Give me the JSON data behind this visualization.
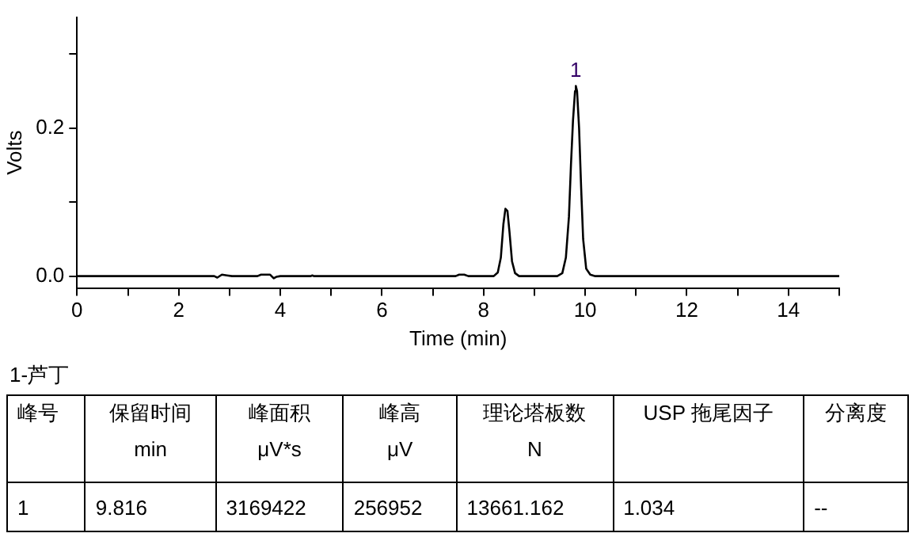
{
  "chart_data": [
    {
      "type": "line",
      "xlabel": "Time (min)",
      "ylabel": "Volts",
      "color": "#000000",
      "x": [
        0,
        2.7,
        2.76,
        2.85,
        2.95,
        3.05,
        3.55,
        3.62,
        3.8,
        3.87,
        3.92,
        4.0,
        4.6,
        4.63,
        4.66,
        7.45,
        7.52,
        7.62,
        7.7,
        8.2,
        8.28,
        8.34,
        8.39,
        8.43,
        8.47,
        8.51,
        8.56,
        8.62,
        8.7,
        9.45,
        9.55,
        9.62,
        9.68,
        9.72,
        9.76,
        9.8,
        9.816,
        9.84,
        9.88,
        9.92,
        9.96,
        10.02,
        10.1,
        10.2,
        15
      ],
      "values": [
        0,
        0,
        -0.002,
        0.002,
        0.001,
        0,
        0,
        0.002,
        0.002,
        -0.003,
        -0.001,
        0,
        0,
        0.001,
        0,
        0,
        0.002,
        0.002,
        0,
        0,
        0.005,
        0.025,
        0.07,
        0.091,
        0.088,
        0.06,
        0.02,
        0.004,
        0,
        0,
        0.004,
        0.025,
        0.08,
        0.15,
        0.21,
        0.25,
        0.257,
        0.25,
        0.2,
        0.12,
        0.05,
        0.01,
        0.002,
        0,
        0
      ],
      "xlim": [
        0,
        15
      ],
      "ylim": [
        -0.016,
        0.35
      ],
      "xticks": [
        0,
        {
          "value": 1,
          "label": null
        },
        2,
        {
          "value": 3,
          "label": null
        },
        4,
        {
          "value": 5,
          "label": null
        },
        6,
        {
          "value": 7,
          "label": null
        },
        8,
        {
          "value": 9,
          "label": null
        },
        10,
        {
          "value": 11,
          "label": null
        },
        12,
        {
          "value": 13,
          "label": null
        },
        14,
        {
          "value": 15,
          "label": null
        }
      ],
      "yticks": [
        {
          "value": 0,
          "label": "0.0"
        },
        {
          "value": 0.1,
          "label": null
        },
        {
          "value": 0.2,
          "label": "0.2"
        },
        {
          "value": 0.3,
          "label": null
        }
      ],
      "annotations": [
        {
          "text": "1",
          "x": 9.816,
          "y": 0.257
        }
      ],
      "grid": false,
      "legend": false,
      "marker": "none"
    },
    {
      "type": "other",
      "title": "1-芦丁",
      "categories": [
        "峰号",
        "保留时间",
        "峰面积",
        "峰高",
        "理论塔板数",
        "USP 拖尾因子",
        "分离度"
      ],
      "cell_labels": [
        [
          null,
          "min",
          "μV*s",
          "μV",
          "N",
          null,
          null
        ],
        [
          "1",
          "9.816",
          "3169422",
          "256952",
          "13661.162",
          "1.034",
          "--"
        ]
      ]
    }
  ]
}
